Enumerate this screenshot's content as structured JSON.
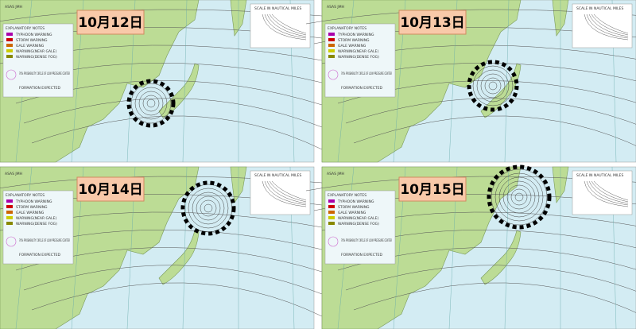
{
  "header": "ASAS    JMH",
  "scale_title": "SCALE IN NAUTICAL MILES",
  "legend": {
    "title": "EXPLANATORY NOTES",
    "items": [
      "TYPHOON WARNING",
      "STORM WARNING",
      "GALE WARNING",
      "WARNING(NEAR GALE)",
      "WARNING(DENSE FOG)"
    ],
    "probability": "70% PROBABILITY CIRCLE OF LOW PRESSURE CENTER",
    "formation": "FORMATION EXPECTED"
  },
  "panels": [
    {
      "date": "10月12日"
    },
    {
      "date": "10月13日"
    },
    {
      "date": "10月14日"
    },
    {
      "date": "10月15日"
    }
  ]
}
